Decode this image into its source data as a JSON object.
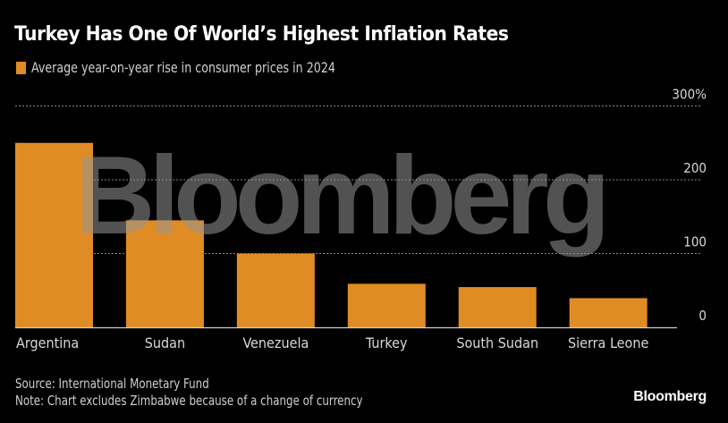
{
  "header": {
    "title": "Turkey Has One Of World’s Highest Inflation Rates",
    "legend_label": "Average year-on-year rise in consumer prices in 2024"
  },
  "footer": {
    "source": "Source: International Monetary Fund",
    "note": "Note: Chart excludes Zimbabwe because of a change of currency",
    "brand": "Bloomberg"
  },
  "watermark": "Bloomberg",
  "colors": {
    "bar": "#e08c24",
    "background": "#000000",
    "grid": "#888888"
  },
  "chart_data": {
    "type": "bar",
    "title": "Turkey Has One Of World’s Highest Inflation Rates",
    "xlabel": "",
    "ylabel": "",
    "categories": [
      "Argentina",
      "Sudan",
      "Venezuela",
      "Turkey",
      "South Sudan",
      "Sierra Leone"
    ],
    "series": [
      {
        "name": "Average year-on-year rise in consumer prices in 2024",
        "values": [
          250,
          145,
          100,
          59,
          54.5,
          39.5
        ]
      }
    ],
    "ylim": [
      0,
      300
    ],
    "yticks": [
      0,
      100,
      200,
      300
    ],
    "ytick_labels": [
      "0",
      "100",
      "200",
      "300%"
    ],
    "grid": true,
    "y_axis_side": "right",
    "legend": "top-left"
  }
}
